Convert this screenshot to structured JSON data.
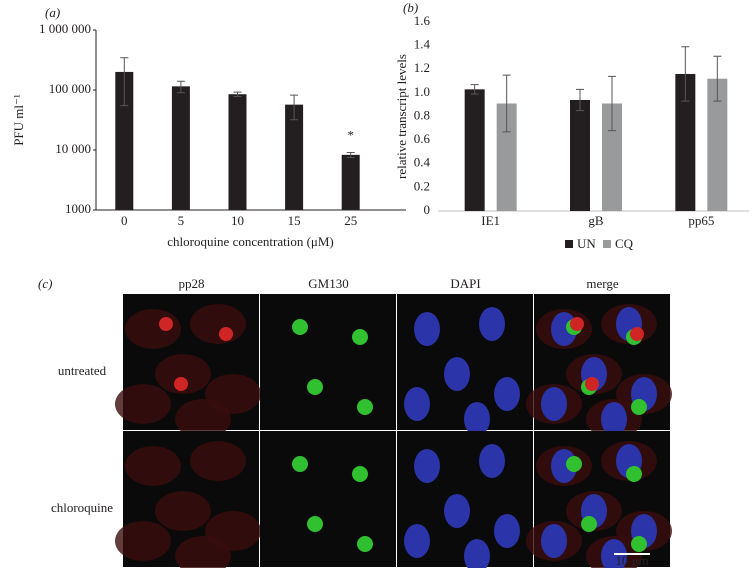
{
  "chart_data": [
    {
      "type": "bar",
      "panel_label": "(a)",
      "y_scale": "log",
      "x_label": "chloroquine concentration (μM)",
      "y_label": "PFU ml⁻¹",
      "categories": [
        "0",
        "5",
        "10",
        "15",
        "25"
      ],
      "values": [
        200000,
        115000,
        85000,
        57000,
        8300
      ],
      "errors": [
        145000,
        25000,
        7000,
        25000,
        800
      ],
      "color": "#231f20",
      "ylim": [
        1000,
        1000000
      ],
      "yticks": [
        1000,
        {
          "value": 10000,
          "label": "10 000"
        },
        {
          "value": 100000,
          "label": "100 000"
        },
        {
          "value": 1000000,
          "label": "1 000 000"
        }
      ],
      "annotations": [
        {
          "category": "25",
          "text": "*"
        }
      ]
    },
    {
      "type": "grouped-bar",
      "panel_label": "(b)",
      "y_label": "relative transcript levels",
      "categories": [
        "IE1",
        "gB",
        "pp65"
      ],
      "series": [
        {
          "name": "UN",
          "color": "#231f20",
          "values": [
            1.03,
            0.94,
            1.16
          ],
          "errors": [
            0.04,
            0.09,
            0.23
          ]
        },
        {
          "name": "CQ",
          "color": "#999a9c",
          "values": [
            0.91,
            0.91,
            1.12
          ],
          "errors": [
            0.24,
            0.23,
            0.19
          ]
        }
      ],
      "ylim": [
        0,
        1.6
      ],
      "yticks": [
        0,
        0.2,
        0.4,
        0.6,
        0.8,
        {
          "value": 1,
          "label": "1.0"
        },
        1.2,
        1.4,
        1.6
      ],
      "legend": "bottom"
    }
  ],
  "panel_c": {
    "panel_label": "(c)",
    "columns": [
      {
        "label": "pp28",
        "color": "#e03030"
      },
      {
        "label": "GM130",
        "color": "#3aaa3a"
      },
      {
        "label": "DAPI",
        "color": "#2a6fc0"
      },
      {
        "label": "merge",
        "color": "#231f20"
      }
    ],
    "rows": [
      "untreated",
      "chloroquine"
    ],
    "scale_bar": "10 μm"
  }
}
